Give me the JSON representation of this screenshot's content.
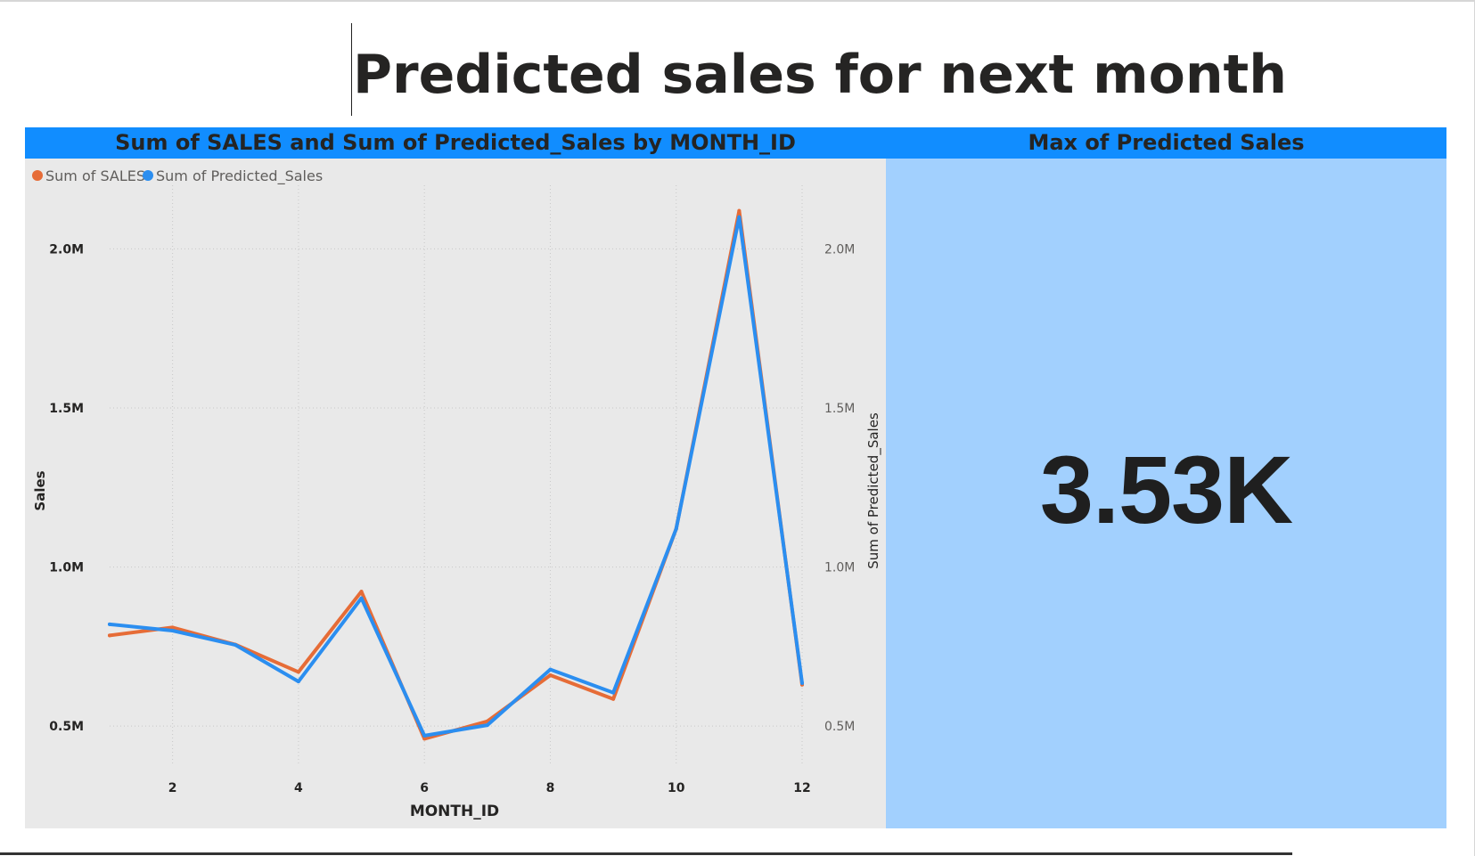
{
  "page": {
    "title": "Predicted sales for next month"
  },
  "line_visual": {
    "header": "Sum of SALES and Sum of Predicted_Sales by MONTH_ID"
  },
  "card_visual": {
    "header": "Max of Predicted Sales",
    "value": "3.53K",
    "background": "#a2d0fe"
  },
  "colors": {
    "header_bar": "#118dff",
    "sales": "#e66c37",
    "predicted": "#2b8ef0",
    "plot_bg": "#e9e9e9"
  },
  "chart_data": {
    "type": "line",
    "title": "Sum of SALES and Sum of Predicted_Sales by MONTH_ID",
    "xlabel": "MONTH_ID",
    "ylabel": "Sales",
    "y2label": "Sum of Predicted_Sales",
    "legend_position": "top-left",
    "grid": true,
    "x": [
      1,
      2,
      3,
      4,
      5,
      6,
      7,
      8,
      9,
      10,
      11,
      12
    ],
    "x_ticks": [
      "2",
      "4",
      "6",
      "8",
      "10",
      "12"
    ],
    "xlim": [
      1,
      12
    ],
    "ylim": [
      0.38,
      2.2
    ],
    "y_ticks": [
      "0.5M",
      "1.0M",
      "1.5M",
      "2.0M"
    ],
    "y2_ticks": [
      "0.5M",
      "1.0M",
      "1.5M",
      "2.0M"
    ],
    "series": [
      {
        "name": "Sum of SALES",
        "axis": "left",
        "color": "#e66c37",
        "values": [
          0.785,
          0.81,
          0.756,
          0.67,
          0.923,
          0.46,
          0.515,
          0.66,
          0.585,
          1.12,
          2.12,
          0.63
        ]
      },
      {
        "name": "Sum of Predicted_Sales",
        "axis": "right",
        "color": "#2b8ef0",
        "values": [
          0.82,
          0.8,
          0.755,
          0.64,
          0.902,
          0.47,
          0.503,
          0.678,
          0.605,
          1.12,
          2.1,
          0.635
        ]
      }
    ]
  }
}
